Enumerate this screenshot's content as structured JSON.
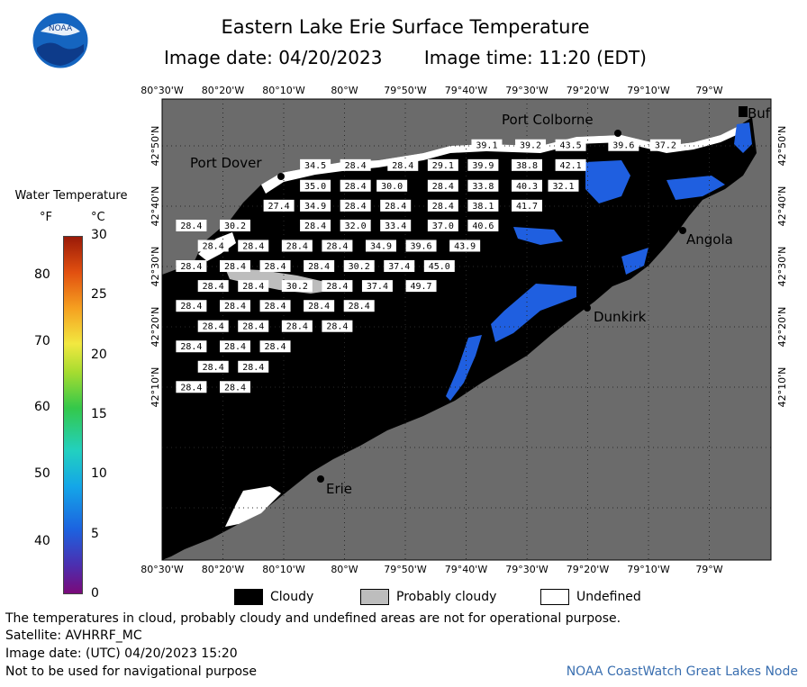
{
  "header": {
    "title": "Eastern Lake Erie Surface Temperature",
    "image_date": "Image date: 04/20/2023",
    "image_time": "Image time: 11:20 (EDT)",
    "logo_text": "NOAA"
  },
  "legend": {
    "title": "Water Temperature",
    "unit_f": "°F",
    "unit_c": "°C",
    "ticks_f": [
      {
        "label": "80",
        "value_c": 26.7
      },
      {
        "label": "70",
        "value_c": 21.1
      },
      {
        "label": "60",
        "value_c": 15.6
      },
      {
        "label": "50",
        "value_c": 10.0
      },
      {
        "label": "40",
        "value_c": 4.4
      }
    ],
    "ticks_c": [
      {
        "label": "30",
        "value_c": 30
      },
      {
        "label": "25",
        "value_c": 25
      },
      {
        "label": "20",
        "value_c": 20
      },
      {
        "label": "15",
        "value_c": 15
      },
      {
        "label": "10",
        "value_c": 10
      },
      {
        "label": "5",
        "value_c": 5
      },
      {
        "label": "0",
        "value_c": 0
      }
    ],
    "range_c": [
      0,
      30
    ]
  },
  "map": {
    "lon_labels": [
      "80°30'W",
      "80°20'W",
      "80°10'W",
      "80°W",
      "79°50'W",
      "79°40'W",
      "79°30'W",
      "79°20'W",
      "79°10'W",
      "79°W"
    ],
    "lat_labels": [
      "42°50'N",
      "42°40'N",
      "42°30'N",
      "42°20'N",
      "42°10'N"
    ],
    "places": [
      {
        "name": "Port Colborne"
      },
      {
        "name": "Port Dover"
      },
      {
        "name": "Buf"
      },
      {
        "name": "Angola"
      },
      {
        "name": "Dunkirk"
      },
      {
        "name": "Erie"
      }
    ],
    "temperatures": [
      {
        "v": "39.1",
        "lon": -79.61,
        "lat": 42.834
      },
      {
        "v": "39.2",
        "lon": -79.49,
        "lat": 42.834
      },
      {
        "v": "43.5",
        "lon": -79.38,
        "lat": 42.834
      },
      {
        "v": "39.6",
        "lon": -79.235,
        "lat": 42.834
      },
      {
        "v": "37.2",
        "lon": -79.12,
        "lat": 42.834
      },
      {
        "v": "34.5",
        "lon": -80.08,
        "lat": 42.779
      },
      {
        "v": "28.4",
        "lon": -79.97,
        "lat": 42.779
      },
      {
        "v": "28.4",
        "lon": -79.84,
        "lat": 42.779
      },
      {
        "v": "29.1",
        "lon": -79.73,
        "lat": 42.779
      },
      {
        "v": "39.9",
        "lon": -79.62,
        "lat": 42.779
      },
      {
        "v": "38.8",
        "lon": -79.5,
        "lat": 42.779
      },
      {
        "v": "42.1",
        "lon": -79.38,
        "lat": 42.779
      },
      {
        "v": "35.0",
        "lon": -80.08,
        "lat": 42.722
      },
      {
        "v": "28.4",
        "lon": -79.97,
        "lat": 42.722
      },
      {
        "v": "30.0",
        "lon": -79.87,
        "lat": 42.722
      },
      {
        "v": "28.4",
        "lon": -79.73,
        "lat": 42.722
      },
      {
        "v": "33.8",
        "lon": -79.62,
        "lat": 42.722
      },
      {
        "v": "40.3",
        "lon": -79.5,
        "lat": 42.722
      },
      {
        "v": "32.1",
        "lon": -79.4,
        "lat": 42.722
      },
      {
        "v": "27.4",
        "lon": -80.18,
        "lat": 42.667
      },
      {
        "v": "34.9",
        "lon": -80.08,
        "lat": 42.667
      },
      {
        "v": "28.4",
        "lon": -79.97,
        "lat": 42.667
      },
      {
        "v": "28.4",
        "lon": -79.86,
        "lat": 42.667
      },
      {
        "v": "28.4",
        "lon": -79.73,
        "lat": 42.667
      },
      {
        "v": "38.1",
        "lon": -79.62,
        "lat": 42.667
      },
      {
        "v": "41.7",
        "lon": -79.5,
        "lat": 42.667
      },
      {
        "v": "28.4",
        "lon": -80.42,
        "lat": 42.612
      },
      {
        "v": "30.2",
        "lon": -80.3,
        "lat": 42.612
      },
      {
        "v": "28.4",
        "lon": -80.08,
        "lat": 42.612
      },
      {
        "v": "32.0",
        "lon": -79.97,
        "lat": 42.612
      },
      {
        "v": "33.4",
        "lon": -79.86,
        "lat": 42.612
      },
      {
        "v": "37.0",
        "lon": -79.73,
        "lat": 42.612
      },
      {
        "v": "40.6",
        "lon": -79.62,
        "lat": 42.612
      },
      {
        "v": "28.4",
        "lon": -80.36,
        "lat": 42.556
      },
      {
        "v": "28.4",
        "lon": -80.25,
        "lat": 42.556
      },
      {
        "v": "28.4",
        "lon": -80.13,
        "lat": 42.556
      },
      {
        "v": "28.4",
        "lon": -80.02,
        "lat": 42.556
      },
      {
        "v": "34.9",
        "lon": -79.9,
        "lat": 42.556
      },
      {
        "v": "39.6",
        "lon": -79.79,
        "lat": 42.556
      },
      {
        "v": "43.9",
        "lon": -79.67,
        "lat": 42.556
      },
      {
        "v": "28.4",
        "lon": -80.42,
        "lat": 42.5
      },
      {
        "v": "28.4",
        "lon": -80.3,
        "lat": 42.5
      },
      {
        "v": "28.4",
        "lon": -80.19,
        "lat": 42.5
      },
      {
        "v": "28.4",
        "lon": -80.07,
        "lat": 42.5
      },
      {
        "v": "30.2",
        "lon": -79.96,
        "lat": 42.5
      },
      {
        "v": "37.4",
        "lon": -79.85,
        "lat": 42.5
      },
      {
        "v": "45.0",
        "lon": -79.74,
        "lat": 42.5
      },
      {
        "v": "28.4",
        "lon": -80.36,
        "lat": 42.445
      },
      {
        "v": "28.4",
        "lon": -80.25,
        "lat": 42.445
      },
      {
        "v": "30.2",
        "lon": -80.13,
        "lat": 42.445
      },
      {
        "v": "28.4",
        "lon": -80.02,
        "lat": 42.445
      },
      {
        "v": "37.4",
        "lon": -79.91,
        "lat": 42.445
      },
      {
        "v": "49.7",
        "lon": -79.79,
        "lat": 42.445
      },
      {
        "v": "28.4",
        "lon": -80.42,
        "lat": 42.39
      },
      {
        "v": "28.4",
        "lon": -80.3,
        "lat": 42.39
      },
      {
        "v": "28.4",
        "lon": -80.19,
        "lat": 42.39
      },
      {
        "v": "28.4",
        "lon": -80.07,
        "lat": 42.39
      },
      {
        "v": "28.4",
        "lon": -79.96,
        "lat": 42.39
      },
      {
        "v": "28.4",
        "lon": -80.36,
        "lat": 42.334
      },
      {
        "v": "28.4",
        "lon": -80.25,
        "lat": 42.334
      },
      {
        "v": "28.4",
        "lon": -80.13,
        "lat": 42.334
      },
      {
        "v": "28.4",
        "lon": -80.02,
        "lat": 42.334
      },
      {
        "v": "28.4",
        "lon": -80.42,
        "lat": 42.278
      },
      {
        "v": "28.4",
        "lon": -80.3,
        "lat": 42.278
      },
      {
        "v": "28.4",
        "lon": -80.19,
        "lat": 42.278
      },
      {
        "v": "28.4",
        "lon": -80.36,
        "lat": 42.222
      },
      {
        "v": "28.4",
        "lon": -80.25,
        "lat": 42.222
      },
      {
        "v": "28.4",
        "lon": -80.42,
        "lat": 42.166
      },
      {
        "v": "28.4",
        "lon": -80.3,
        "lat": 42.166
      }
    ]
  },
  "key": {
    "cloudy": "Cloudy",
    "probably_cloudy": "Probably cloudy",
    "undefined": "Undefined"
  },
  "footer": {
    "disclaimer": "The temperatures in cloud, probably cloudy and undefined areas are not for operational purpose.",
    "satellite": "Satellite: AVHRRF_MC",
    "utc_date": "Image date: (UTC) 04/20/2023  15:20",
    "nav_warning": "Not to be used for navigational purpose",
    "node": "NOAA CoastWatch Great Lakes Node"
  },
  "colors": {
    "land": "#6b6b6b",
    "cloud": "#000000",
    "probably_cloudy": "#bdbdbd",
    "water_blue": "#1f5fe0",
    "grid": "#222222"
  }
}
